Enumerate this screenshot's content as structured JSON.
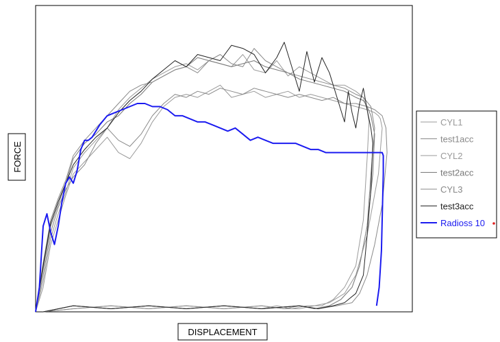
{
  "chart_data": {
    "type": "line",
    "title": "",
    "xlabel": "DISPLACEMENT",
    "ylabel": "FORCE",
    "xlim": [
      0,
      100
    ],
    "ylim": [
      0,
      100
    ],
    "grid": false,
    "legend_position": "right",
    "series": [
      {
        "name": "CYL1",
        "color": "#999999",
        "width": 1,
        "x": [
          0,
          2,
          4,
          6,
          8,
          10,
          13,
          16,
          19,
          22,
          25,
          28,
          31,
          34,
          37,
          40,
          43,
          46,
          49,
          52,
          55,
          58,
          61,
          64,
          67,
          70,
          73,
          76,
          79,
          82,
          85,
          88,
          90,
          91,
          91.5,
          92,
          91,
          88,
          85,
          82,
          78,
          74,
          70,
          66,
          60,
          50,
          40,
          30,
          20,
          10,
          2
        ],
        "y": [
          0,
          8,
          22,
          30,
          38,
          45,
          49,
          53,
          57,
          52,
          50,
          55,
          62,
          67,
          70,
          71,
          70,
          72,
          74,
          70,
          71,
          72,
          70,
          71,
          72,
          70,
          71,
          70,
          69,
          68,
          67,
          66,
          65,
          64,
          63,
          60,
          45,
          25,
          12,
          6,
          3,
          2,
          1,
          1,
          2,
          1,
          2,
          1,
          2,
          1,
          0
        ]
      },
      {
        "name": "test1acc",
        "color": "#888888",
        "width": 1,
        "x": [
          0,
          2,
          4,
          6,
          8,
          10,
          13,
          16,
          19,
          22,
          25,
          28,
          31,
          34,
          37,
          40,
          43,
          46,
          49,
          52,
          55,
          58,
          61,
          64,
          67,
          70,
          73,
          76,
          79,
          82,
          85,
          88,
          90,
          92,
          93,
          93.3,
          92,
          90,
          88,
          86,
          84,
          80,
          75,
          70,
          60,
          50,
          40,
          30,
          20,
          10,
          2
        ],
        "y": [
          0,
          12,
          26,
          34,
          40,
          44,
          48,
          55,
          60,
          56,
          54,
          58,
          64,
          68,
          71,
          70,
          72,
          71,
          73,
          72,
          71,
          73,
          72,
          71,
          70,
          71,
          70,
          69,
          70,
          68,
          68,
          67,
          66,
          64,
          60,
          52,
          35,
          22,
          12,
          6,
          3,
          2,
          1,
          2,
          1,
          2,
          1,
          2,
          1,
          2,
          0
        ]
      },
      {
        "name": "CYL2",
        "color": "#999999",
        "width": 1,
        "x": [
          0,
          2,
          4,
          6,
          8,
          10,
          13,
          16,
          19,
          22,
          25,
          28,
          31,
          34,
          37,
          40,
          43,
          46,
          49,
          52,
          55,
          58,
          61,
          64,
          67,
          70,
          73,
          76,
          79,
          82,
          85,
          87,
          88,
          88.5,
          88,
          87,
          85,
          82,
          79,
          76,
          72,
          68,
          64,
          60,
          50,
          40,
          30,
          20,
          10,
          2
        ],
        "y": [
          0,
          10,
          24,
          32,
          39,
          47,
          52,
          56,
          60,
          66,
          70,
          73,
          76,
          78,
          80,
          81,
          79,
          82,
          81,
          80,
          84,
          79,
          78,
          82,
          77,
          80,
          78,
          76,
          74,
          74,
          72,
          70,
          66,
          62,
          50,
          30,
          15,
          8,
          4,
          2,
          2,
          1,
          2,
          1,
          2,
          1,
          2,
          1,
          2,
          0
        ]
      },
      {
        "name": "test2acc",
        "color": "#777777",
        "width": 1,
        "x": [
          0,
          2,
          4,
          6,
          8,
          10,
          13,
          16,
          19,
          22,
          25,
          28,
          31,
          34,
          37,
          40,
          43,
          46,
          49,
          52,
          55,
          58,
          61,
          64,
          67,
          70,
          73,
          76,
          79,
          82,
          85,
          87,
          88,
          89,
          90,
          89.5,
          88,
          86,
          84,
          81,
          78,
          74,
          70,
          60,
          50,
          40,
          30,
          20,
          10,
          2
        ],
        "y": [
          0,
          14,
          28,
          35,
          42,
          50,
          55,
          58,
          62,
          64,
          68,
          71,
          75,
          77,
          79,
          80,
          83,
          82,
          81,
          80,
          81,
          82,
          80,
          79,
          78,
          76,
          75,
          74,
          73,
          72,
          70,
          69,
          67,
          64,
          58,
          45,
          28,
          15,
          8,
          4,
          2,
          1,
          2,
          1,
          2,
          1,
          2,
          1,
          2,
          0
        ]
      },
      {
        "name": "CYL3",
        "color": "#888888",
        "width": 1,
        "x": [
          0,
          2,
          4,
          6,
          8,
          10,
          13,
          16,
          19,
          22,
          25,
          28,
          31,
          34,
          37,
          40,
          43,
          46,
          49,
          52,
          55,
          58,
          61,
          64,
          67,
          70,
          73,
          76,
          79,
          82,
          85,
          87,
          89,
          90,
          89,
          88,
          86,
          84,
          81,
          78,
          74,
          70,
          66,
          60,
          50,
          40,
          30,
          20,
          10,
          2
        ],
        "y": [
          0,
          16,
          30,
          37,
          43,
          51,
          56,
          60,
          64,
          68,
          72,
          74,
          75,
          77,
          79,
          80,
          78,
          82,
          84,
          81,
          80,
          86,
          82,
          80,
          78,
          77,
          76,
          75,
          74,
          73,
          71,
          70,
          67,
          60,
          45,
          28,
          15,
          8,
          4,
          2,
          1,
          2,
          1,
          2,
          1,
          2,
          1,
          2,
          1,
          0
        ]
      },
      {
        "name": "test3acc",
        "color": "#222222",
        "width": 1,
        "x": [
          0,
          2,
          4,
          6,
          8,
          10,
          13,
          16,
          19,
          22,
          25,
          28,
          31,
          34,
          37,
          40,
          43,
          46,
          49,
          52,
          55,
          58,
          61,
          64,
          66,
          68,
          70,
          72,
          74,
          76,
          78,
          80,
          82,
          83,
          84,
          85,
          86,
          87,
          88,
          89,
          89.5,
          89,
          88,
          87,
          85,
          82,
          79,
          75,
          70,
          60,
          50,
          40,
          30,
          20,
          10,
          2
        ],
        "y": [
          0,
          15,
          29,
          36,
          42,
          48,
          53,
          57,
          60,
          65,
          69,
          72,
          76,
          79,
          82,
          80,
          84,
          83,
          82,
          87,
          86,
          84,
          78,
          83,
          88,
          80,
          72,
          85,
          75,
          83,
          78,
          70,
          62,
          72,
          65,
          60,
          68,
          73,
          66,
          60,
          55,
          40,
          25,
          12,
          6,
          3,
          2,
          1,
          2,
          1,
          2,
          1,
          2,
          1,
          2,
          0
        ]
      },
      {
        "name": "Radioss 10",
        "color": "#1a1af0",
        "width": 2,
        "x": [
          0,
          1,
          2,
          3,
          4,
          5,
          6,
          7,
          8,
          9,
          10,
          11,
          12,
          13,
          14,
          15,
          17,
          19,
          21,
          23,
          25,
          27,
          29,
          31,
          33,
          35,
          37,
          39,
          41,
          43,
          45,
          47,
          49,
          51,
          53,
          55,
          57,
          59,
          61,
          63,
          65,
          67,
          69,
          71,
          73,
          75,
          77,
          79,
          81,
          83,
          85,
          87,
          89,
          91,
          92,
          92.3,
          92.3,
          92.1,
          91.8,
          91.2,
          90.5
        ],
        "y": [
          0,
          8,
          28,
          32,
          26,
          22,
          28,
          36,
          42,
          44,
          42,
          46,
          53,
          56,
          56,
          57,
          61,
          64,
          65,
          66,
          67,
          68,
          68,
          67,
          67,
          66,
          64,
          64,
          63,
          62,
          62,
          61,
          60,
          59,
          60,
          58,
          56,
          57,
          56,
          55,
          55,
          55,
          55,
          54,
          53,
          53,
          52,
          52,
          52,
          52,
          52,
          52,
          52,
          52,
          52,
          51,
          45,
          35,
          20,
          8,
          2
        ]
      }
    ]
  }
}
